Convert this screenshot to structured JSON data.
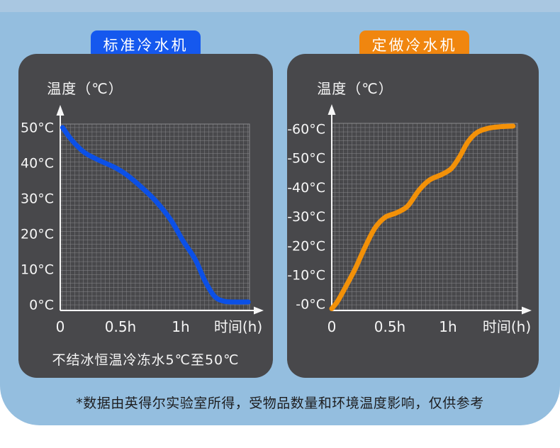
{
  "page": {
    "bg_color": "#94bedf",
    "top_strip_color": "#a9c7e1",
    "panel_color": "#48484b",
    "footnote": "*数据由英得尔实验室所得，受物品数量和环境温度影响，仅供参考"
  },
  "chart_data": [
    {
      "id": "standard-chiller",
      "type": "line",
      "badge": {
        "label": "标准冷水机",
        "color": "#1558ee"
      },
      "title": "温度（℃）",
      "x_axis_label": "时间(h)",
      "x_ticks": [
        {
          "label": "0",
          "t": 0
        },
        {
          "label": "0.5h",
          "t": 0.5
        },
        {
          "label": "1h",
          "t": 1
        }
      ],
      "y_ticks": [
        {
          "label": "50°C",
          "value": 50
        },
        {
          "label": "40°C",
          "value": 40
        },
        {
          "label": "30°C",
          "value": 30
        },
        {
          "label": "20°C",
          "value": 20
        },
        {
          "label": "10°C",
          "value": 10
        },
        {
          "label": "0°C",
          "value": 0
        }
      ],
      "x_range_hours": [
        0,
        1.57
      ],
      "y_range": [
        0,
        50
      ],
      "grid": true,
      "grid_color": "#8e8e91",
      "axis_color": "#f6f6f6",
      "line_color": "#0c50e6",
      "series": [
        {
          "points": [
            [
              0.02,
              50
            ],
            [
              0.1,
              46.3
            ],
            [
              0.2,
              43
            ],
            [
              0.32,
              40.8
            ],
            [
              0.45,
              38.8
            ],
            [
              0.55,
              36.7
            ],
            [
              0.68,
              33
            ],
            [
              0.8,
              29
            ],
            [
              0.92,
              23.8
            ],
            [
              1.02,
              18
            ],
            [
              1.12,
              12.8
            ],
            [
              1.2,
              6.8
            ],
            [
              1.28,
              2.4
            ],
            [
              1.36,
              1
            ],
            [
              1.45,
              0.8
            ],
            [
              1.56,
              0.8
            ]
          ]
        }
      ],
      "caption": "不结冰恒温冷冻水5℃至50℃"
    },
    {
      "id": "custom-chiller",
      "type": "line",
      "badge": {
        "label": "定做冷水机",
        "color": "#f0860f"
      },
      "title": "温度（℃）",
      "x_axis_label": "时间(h)",
      "x_ticks": [
        {
          "label": "0",
          "t": 0
        },
        {
          "label": "0.5h",
          "t": 0.5
        },
        {
          "label": "1h",
          "t": 1
        }
      ],
      "y_ticks": [
        {
          "label": "-60°C",
          "value": -60
        },
        {
          "label": "-50°C",
          "value": -50
        },
        {
          "label": "-40°C",
          "value": -40
        },
        {
          "label": "-30°C",
          "value": -30
        },
        {
          "label": "-20°C",
          "value": -20
        },
        {
          "label": "-10°C",
          "value": -10
        },
        {
          "label": "-0°C",
          "value": 0
        }
      ],
      "x_range_hours": [
        0,
        1.56
      ],
      "y_range": [
        -61,
        0
      ],
      "grid": true,
      "grid_color": "#8e8e91",
      "axis_color": "#f6f6f6",
      "line_color": "#f39108",
      "series": [
        {
          "points": [
            [
              0,
              1.5
            ],
            [
              0.05,
              -1
            ],
            [
              0.12,
              -6
            ],
            [
              0.2,
              -12
            ],
            [
              0.28,
              -19
            ],
            [
              0.37,
              -26
            ],
            [
              0.46,
              -29.8
            ],
            [
              0.55,
              -31.2
            ],
            [
              0.65,
              -33.5
            ],
            [
              0.75,
              -39
            ],
            [
              0.84,
              -42.5
            ],
            [
              0.95,
              -44.5
            ],
            [
              1.03,
              -46.5
            ],
            [
              1.1,
              -50.5
            ],
            [
              1.17,
              -55.5
            ],
            [
              1.25,
              -58.8
            ],
            [
              1.35,
              -60.3
            ],
            [
              1.45,
              -60.8
            ],
            [
              1.56,
              -61
            ]
          ]
        }
      ],
      "caption": ""
    }
  ]
}
